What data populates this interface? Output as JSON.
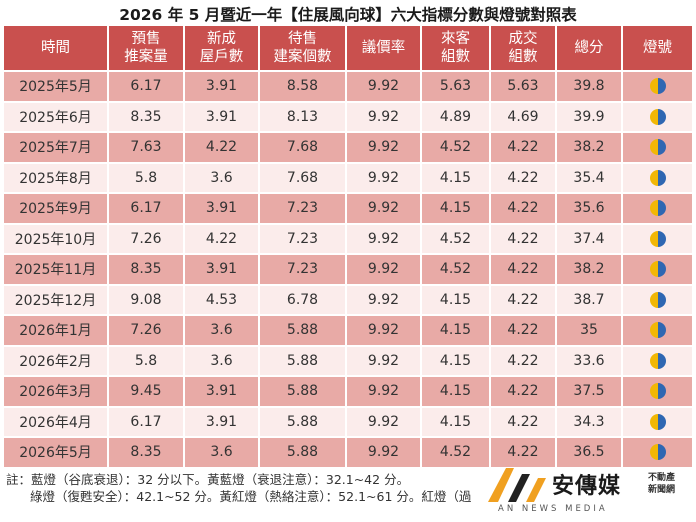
{
  "title": "2026 年 5 月暨近一年【住展風向球】六大指標分數與燈號對照表",
  "header": {
    "col0": "時間",
    "col1_line1": "預售",
    "col1_line2": "推案量",
    "col2_line1": "新成",
    "col2_line2": "屋戶數",
    "col3_line1": "待售",
    "col3_line2": "建案個數",
    "col4": "議價率",
    "col5_line1": "來客",
    "col5_line2": "組數",
    "col6_line1": "成交",
    "col6_line2": "組數",
    "col7": "總分",
    "col8": "燈號"
  },
  "rows": [
    {
      "time": "2025年5月",
      "presale": "6.17",
      "newhouse": "3.91",
      "pending": "8.58",
      "bargain": "9.92",
      "visitors": "5.63",
      "deals": "5.63",
      "total": "39.8",
      "light": "yellow-blue"
    },
    {
      "time": "2025年6月",
      "presale": "8.35",
      "newhouse": "3.91",
      "pending": "8.13",
      "bargain": "9.92",
      "visitors": "4.89",
      "deals": "4.69",
      "total": "39.9",
      "light": "yellow-blue"
    },
    {
      "time": "2025年7月",
      "presale": "7.63",
      "newhouse": "4.22",
      "pending": "7.68",
      "bargain": "9.92",
      "visitors": "4.52",
      "deals": "4.22",
      "total": "38.2",
      "light": "yellow-blue"
    },
    {
      "time": "2025年8月",
      "presale": "5.8",
      "newhouse": "3.6",
      "pending": "7.68",
      "bargain": "9.92",
      "visitors": "4.15",
      "deals": "4.22",
      "total": "35.4",
      "light": "yellow-blue"
    },
    {
      "time": "2025年9月",
      "presale": "6.17",
      "newhouse": "3.91",
      "pending": "7.23",
      "bargain": "9.92",
      "visitors": "4.15",
      "deals": "4.22",
      "total": "35.6",
      "light": "yellow-blue"
    },
    {
      "time": "2025年10月",
      "presale": "7.26",
      "newhouse": "4.22",
      "pending": "7.23",
      "bargain": "9.92",
      "visitors": "4.52",
      "deals": "4.22",
      "total": "37.4",
      "light": "yellow-blue"
    },
    {
      "time": "2025年11月",
      "presale": "8.35",
      "newhouse": "3.91",
      "pending": "7.23",
      "bargain": "9.92",
      "visitors": "4.52",
      "deals": "4.22",
      "total": "38.2",
      "light": "yellow-blue"
    },
    {
      "time": "2025年12月",
      "presale": "9.08",
      "newhouse": "4.53",
      "pending": "6.78",
      "bargain": "9.92",
      "visitors": "4.15",
      "deals": "4.22",
      "total": "38.7",
      "light": "yellow-blue"
    },
    {
      "time": "2026年1月",
      "presale": "7.26",
      "newhouse": "3.6",
      "pending": "5.88",
      "bargain": "9.92",
      "visitors": "4.15",
      "deals": "4.22",
      "total": "35",
      "light": "yellow-blue"
    },
    {
      "time": "2026年2月",
      "presale": "5.8",
      "newhouse": "3.6",
      "pending": "5.88",
      "bargain": "9.92",
      "visitors": "4.15",
      "deals": "4.22",
      "total": "33.6",
      "light": "yellow-blue"
    },
    {
      "time": "2026年3月",
      "presale": "9.45",
      "newhouse": "3.91",
      "pending": "5.88",
      "bargain": "9.92",
      "visitors": "4.15",
      "deals": "4.22",
      "total": "37.5",
      "light": "yellow-blue"
    },
    {
      "time": "2026年4月",
      "presale": "6.17",
      "newhouse": "3.91",
      "pending": "5.88",
      "bargain": "9.92",
      "visitors": "4.15",
      "deals": "4.22",
      "total": "34.3",
      "light": "yellow-blue"
    },
    {
      "time": "2026年5月",
      "presale": "8.35",
      "newhouse": "3.6",
      "pending": "5.88",
      "bargain": "9.92",
      "visitors": "4.52",
      "deals": "4.22",
      "total": "36.5",
      "light": "yellow-blue"
    }
  ],
  "light_colors": {
    "yellow": "#f2b705",
    "blue": "#2f67b2"
  },
  "notes": {
    "line1": "註：藍燈（谷底衰退）：32 分以下。黃藍燈（衰退注意）：32.1~42 分。",
    "line2": "綠燈（復甦安全）：42.1~52 分。黃紅燈（熱絡注意）：52.1~61 分。紅燈（過"
  },
  "logo": {
    "name": "安傳媒",
    "tag1": "不動產",
    "tag2": "新聞網",
    "sub": "AN NEWS MEDIA",
    "colors": {
      "orange": "#f0a020",
      "dark": "#222222"
    }
  }
}
